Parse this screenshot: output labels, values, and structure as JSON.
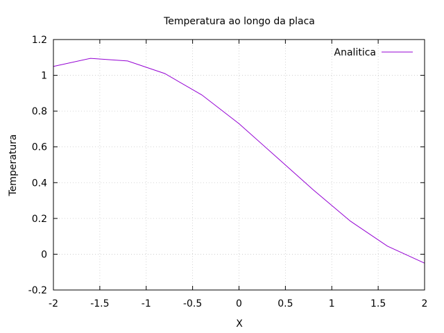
{
  "chart_data": {
    "type": "line",
    "title": "Temperatura ao longo da placa",
    "xlabel": "X",
    "ylabel": "Temperatura",
    "xlim": [
      -2,
      2
    ],
    "ylim": [
      -0.2,
      1.2
    ],
    "xticks": [
      "-2",
      "-1.5",
      "-1",
      "-0.5",
      "0",
      "0.5",
      "1",
      "1.5",
      "2"
    ],
    "yticks": [
      "-0.2",
      "0",
      "0.2",
      "0.4",
      "0.6",
      "0.8",
      "1",
      "1.2"
    ],
    "grid": true,
    "legend_position": "top-right",
    "series": [
      {
        "name": "Analitica",
        "color": "#9400d3",
        "x": [
          -2,
          -1.6,
          -1.2,
          -0.8,
          -0.4,
          0,
          0.4,
          0.8,
          1.2,
          1.6,
          2
        ],
        "y": [
          1.05,
          1.095,
          1.08,
          1.01,
          0.89,
          0.73,
          0.545,
          0.36,
          0.185,
          0.045,
          -0.05
        ]
      }
    ]
  }
}
